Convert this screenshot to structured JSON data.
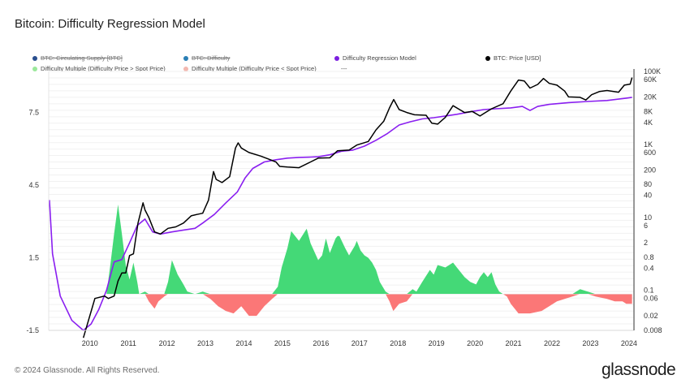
{
  "chart_data": {
    "type": "line",
    "title": "Bitcoin: Difficulty Regression Model",
    "x_ticks": [
      "2010",
      "2011",
      "2012",
      "2013",
      "2014",
      "2015",
      "2016",
      "2017",
      "2018",
      "2019",
      "2020",
      "2021",
      "2022",
      "2023",
      "2024"
    ],
    "left_ticks": [
      "7.5",
      "4.5",
      "1.5",
      "-1.5"
    ],
    "left_tick_values": [
      7.5,
      4.5,
      1.5,
      -1.5
    ],
    "left_range": [
      -1.5,
      9.2
    ],
    "right_ticks": [
      "100K",
      "60K",
      "20K",
      "8K",
      "4K",
      "1K",
      "600",
      "200",
      "80",
      "40",
      "10",
      "6",
      "2",
      "0.8",
      "0.4",
      "0.1",
      "0.06",
      "0.02",
      "0.008"
    ],
    "right_tick_values": [
      100000,
      60000,
      20000,
      8000,
      4000,
      1000,
      600,
      200,
      80,
      40,
      10,
      6,
      2,
      0.8,
      0.4,
      0.1,
      0.06,
      0.02,
      0.008
    ],
    "right_range_log": [
      0.008,
      100000
    ],
    "x_range": [
      2009.0,
      2024.2
    ],
    "legend": [
      {
        "label": "BTC: Circulating Supply [BTC]",
        "color": "#2a4f8f",
        "hidden": true
      },
      {
        "label": "BTC: Difficulty",
        "color": "#2a7fb5",
        "hidden": true
      },
      {
        "label": "Difficulty Regression Model",
        "color": "#7b1fe0",
        "hidden": false
      },
      {
        "label": "BTC: Price [USD]",
        "color": "#000000",
        "hidden": false
      },
      {
        "label": "Difficulty Multiple (Difficulty Price > Spot Price)",
        "color": "#9be89b",
        "hidden": false
      },
      {
        "label": "Difficulty Multiple (Difficulty Price < Spot Price)",
        "color": "#f3b8b0",
        "hidden": false
      },
      {
        "label": "---",
        "color": "",
        "hidden": false
      }
    ],
    "colors": {
      "price": "#000000",
      "model": "#8a1ff0",
      "multiple_positive": "#44d977",
      "multiple_negative": "#fb7777"
    },
    "series": [
      {
        "name": "BTC: Price [USD]",
        "axis": "right",
        "x": [
          2009.9,
          2010.2,
          2010.45,
          2010.55,
          2010.7,
          2010.8,
          2010.9,
          2011.0,
          2011.1,
          2011.2,
          2011.32,
          2011.45,
          2011.5,
          2011.6,
          2011.75,
          2011.9,
          2012.1,
          2012.3,
          2012.5,
          2012.7,
          2012.85,
          2013.0,
          2013.15,
          2013.28,
          2013.35,
          2013.5,
          2013.7,
          2013.85,
          2013.92,
          2014.0,
          2014.2,
          2014.5,
          2014.7,
          2014.9,
          2015.0,
          2015.2,
          2015.5,
          2015.8,
          2016.0,
          2016.3,
          2016.5,
          2016.8,
          2017.0,
          2017.3,
          2017.5,
          2017.7,
          2017.85,
          2017.96,
          2018.1,
          2018.3,
          2018.5,
          2018.8,
          2018.95,
          2019.1,
          2019.3,
          2019.5,
          2019.8,
          2020.0,
          2020.2,
          2020.3,
          2020.5,
          2020.8,
          2021.0,
          2021.2,
          2021.35,
          2021.5,
          2021.7,
          2021.85,
          2022.0,
          2022.2,
          2022.4,
          2022.5,
          2022.8,
          2022.95,
          2023.1,
          2023.3,
          2023.5,
          2023.8,
          2023.95,
          2024.1,
          2024.15
        ],
        "values": [
          0.005,
          0.06,
          0.07,
          0.06,
          0.07,
          0.18,
          0.3,
          0.3,
          0.9,
          1.0,
          7,
          25,
          16,
          10,
          4,
          3.5,
          5,
          5.5,
          7,
          11,
          12,
          13,
          30,
          180,
          110,
          90,
          130,
          800,
          1100,
          800,
          600,
          480,
          400,
          330,
          250,
          240,
          230,
          330,
          420,
          430,
          670,
          700,
          960,
          1200,
          2500,
          4300,
          10000,
          17000,
          9000,
          7500,
          6500,
          6300,
          3800,
          3600,
          5500,
          11500,
          7500,
          8000,
          6000,
          7000,
          9500,
          13000,
          29000,
          58000,
          55000,
          35000,
          44000,
          64000,
          47000,
          42000,
          29000,
          20000,
          19500,
          16500,
          23000,
          28000,
          30000,
          27000,
          42000,
          45000,
          68000
        ]
      },
      {
        "name": "Difficulty Regression Model",
        "axis": "right",
        "x": [
          2009.02,
          2009.1,
          2009.3,
          2009.6,
          2009.9,
          2010.1,
          2010.3,
          2010.5,
          2010.7,
          2010.9,
          2011.1,
          2011.3,
          2011.5,
          2011.7,
          2011.9,
          2012.2,
          2012.5,
          2012.8,
          2013.0,
          2013.3,
          2013.6,
          2013.9,
          2014.1,
          2014.3,
          2014.6,
          2014.9,
          2015.2,
          2015.5,
          2015.8,
          2016.0,
          2016.3,
          2016.6,
          2016.9,
          2017.2,
          2017.5,
          2017.8,
          2018.1,
          2018.4,
          2018.7,
          2019.0,
          2019.3,
          2019.6,
          2020.0,
          2020.3,
          2020.6,
          2021.0,
          2021.3,
          2021.5,
          2021.7,
          2022.0,
          2022.5,
          2023.0,
          2023.5,
          2024.0,
          2024.15
        ],
        "values": [
          30,
          1.0,
          0.07,
          0.015,
          0.008,
          0.012,
          0.03,
          0.1,
          0.6,
          0.7,
          2,
          6,
          9,
          4,
          3.5,
          4,
          4.5,
          5,
          7,
          12,
          25,
          50,
          120,
          220,
          330,
          380,
          420,
          440,
          450,
          460,
          520,
          650,
          700,
          900,
          1300,
          2000,
          3400,
          4200,
          5000,
          5400,
          6000,
          6700,
          8000,
          9000,
          9500,
          10000,
          11000,
          8500,
          11000,
          12500,
          14000,
          15000,
          16000,
          18500,
          19500
        ]
      },
      {
        "name": "Difficulty Multiple",
        "axis": "left",
        "x": [
          2010.5,
          2010.6,
          2010.7,
          2010.8,
          2010.9,
          2011.0,
          2011.1,
          2011.2,
          2011.3,
          2011.35,
          2011.5,
          2011.6,
          2011.75,
          2011.85,
          2012.0,
          2012.1,
          2012.2,
          2012.35,
          2012.5,
          2012.6,
          2012.8,
          2013.0,
          2013.2,
          2013.4,
          2013.6,
          2013.8,
          2014.0,
          2014.2,
          2014.4,
          2014.6,
          2014.8,
          2014.95,
          2015.05,
          2015.2,
          2015.3,
          2015.5,
          2015.7,
          2015.8,
          2016.0,
          2016.1,
          2016.2,
          2016.3,
          2016.45,
          2016.5,
          2016.55,
          2016.7,
          2016.8,
          2016.95,
          2017.0,
          2017.1,
          2017.2,
          2017.3,
          2017.4,
          2017.5,
          2017.6,
          2017.75,
          2017.85,
          2017.95,
          2018.1,
          2018.3,
          2018.45,
          2018.55,
          2018.7,
          2018.9,
          2019.0,
          2019.1,
          2019.3,
          2019.5,
          2019.6,
          2019.8,
          2019.95,
          2020.1,
          2020.2,
          2020.3,
          2020.4,
          2020.5,
          2020.6,
          2020.7,
          2020.8,
          2020.9,
          2021.0,
          2021.1,
          2021.2,
          2021.5,
          2021.8,
          2022.0,
          2022.2,
          2022.4,
          2022.6,
          2022.8,
          2023.0,
          2023.2,
          2023.5,
          2023.7,
          2023.9,
          2024.0,
          2024.15
        ],
        "values": [
          0,
          1.2,
          2.5,
          3.7,
          2.5,
          1.2,
          0.6,
          1.3,
          0.5,
          0,
          0.1,
          -0.3,
          -0.6,
          -0.3,
          -0.1,
          0.5,
          1.4,
          0.8,
          0.4,
          0.1,
          0,
          0.1,
          -0.2,
          -0.5,
          -0.7,
          -0.8,
          -0.5,
          -0.9,
          -0.9,
          -0.5,
          -0.2,
          0.3,
          1.1,
          1.9,
          2.6,
          2.2,
          2.7,
          2.1,
          1.4,
          1.6,
          2.3,
          1.7,
          2.3,
          2.4,
          2.4,
          1.9,
          1.6,
          2.0,
          2.2,
          1.8,
          1.6,
          1.5,
          1.3,
          1.0,
          0.5,
          0.1,
          -0.3,
          -0.7,
          -0.4,
          -0.3,
          0.2,
          0.1,
          0.5,
          1.0,
          0.8,
          1.2,
          1.1,
          1.3,
          1.1,
          0.7,
          0.5,
          0.4,
          0.7,
          0.9,
          0.7,
          0.9,
          0.4,
          0.1,
          0,
          -0.1,
          -0.4,
          -0.6,
          -0.8,
          -0.8,
          -0.7,
          -0.5,
          -0.3,
          -0.2,
          -0.1,
          0.2,
          0.1,
          -0.1,
          -0.2,
          -0.3,
          -0.3,
          -0.4,
          -0.4
        ]
      }
    ],
    "xlabel": "",
    "ylabel_left": "",
    "ylabel_right": "",
    "grid": true,
    "legend_placement": "top"
  },
  "footer": {
    "copyright": "© 2024 Glassnode. All Rights Reserved.",
    "logo_text": "glassnode"
  }
}
